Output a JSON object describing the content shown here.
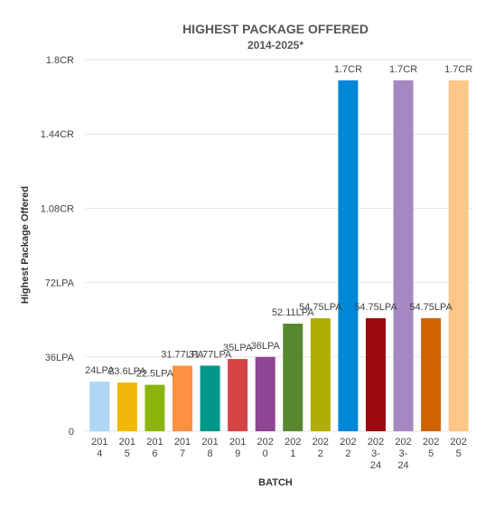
{
  "chart_data": {
    "type": "bar",
    "title": "HIGHEST PACKAGE OFFERED",
    "subtitle": "2014-2025*",
    "xlabel": "BATCH",
    "ylabel": "Highest Package Offered",
    "ylim": [
      0,
      180
    ],
    "y_unit": "LPA",
    "y_ticks": [
      0,
      36,
      72,
      108,
      144,
      180
    ],
    "y_tick_labels": [
      "0",
      "36LPA",
      "72LPA",
      "1.08CR",
      "1.44CR",
      "1.8CR"
    ],
    "grid": true,
    "legend": "none",
    "categories": [
      [
        "201",
        "4"
      ],
      [
        "201",
        "5"
      ],
      [
        "201",
        "6"
      ],
      [
        "201",
        "7"
      ],
      [
        "201",
        "8"
      ],
      [
        "201",
        "9"
      ],
      [
        "202",
        "0"
      ],
      [
        "202",
        "1"
      ],
      [
        "202",
        "2"
      ],
      [
        "202",
        "2"
      ],
      [
        "202",
        "3-",
        "24"
      ],
      [
        "202",
        "3-",
        "24"
      ],
      [
        "202",
        "5"
      ],
      [
        "202",
        "5"
      ]
    ],
    "values": [
      24,
      23.6,
      22.5,
      31.77,
      31.77,
      35,
      36,
      52.11,
      54.75,
      170,
      54.75,
      170,
      54.75,
      170
    ],
    "data_labels": [
      "24LPA",
      "23.6LPA",
      "22.5LPA",
      "31.77LPA",
      "31.77LPA",
      "35LPA",
      "36LPA",
      "52.11LPA",
      "54.75LPA",
      "1.7CR",
      "54.75LPA",
      "1.7CR",
      "54.75LPA",
      "1.7CR"
    ],
    "colors": [
      "#aed6f5",
      "#f2b70f",
      "#8bb50a",
      "#fe9043",
      "#009688",
      "#d64545",
      "#8e4593",
      "#578830",
      "#b2ad05",
      "#0087d8",
      "#9d0b0f",
      "#a587c1",
      "#d06301",
      "#fec787"
    ]
  }
}
